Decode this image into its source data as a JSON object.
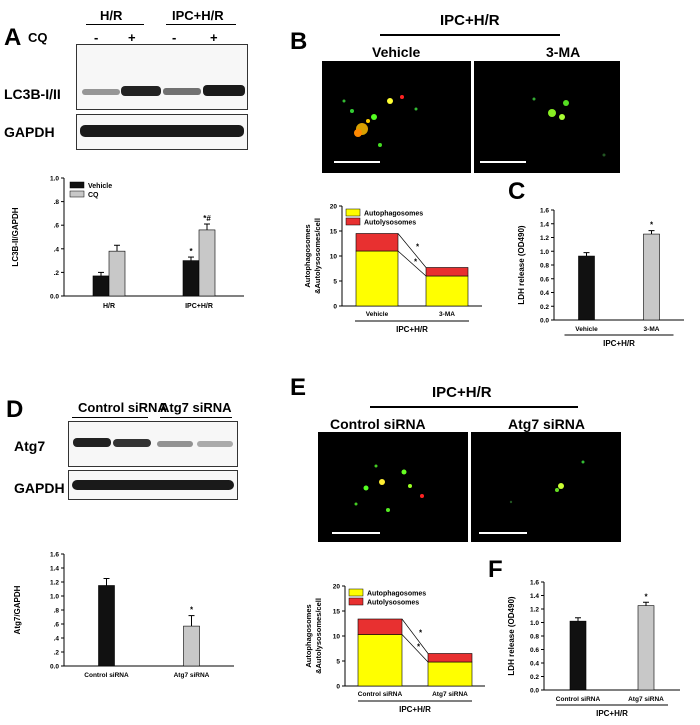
{
  "panels": {
    "A": {
      "label": "A",
      "groups": [
        "H/R",
        "IPC+H/R"
      ],
      "cq_row_label": "CQ",
      "signs": [
        "-",
        "+",
        "-",
        "+"
      ],
      "blot_labels": [
        "LC3B-I/II",
        "GAPDH"
      ]
    },
    "B": {
      "label": "B",
      "header": "IPC+H/R",
      "image_labels": [
        "Vehicle",
        "3-MA"
      ]
    },
    "C": {
      "label": "C"
    },
    "D": {
      "label": "D",
      "groups": [
        "Control siRNA",
        "Atg7 siRNA"
      ],
      "blot_labels": [
        "Atg7",
        "GAPDH"
      ]
    },
    "E": {
      "label": "E",
      "header": "IPC+H/R",
      "image_labels": [
        "Control siRNA",
        "Atg7 siRNA"
      ]
    },
    "F": {
      "label": "F"
    }
  },
  "chart_data": [
    {
      "id": "A-bar",
      "type": "bar",
      "categories": [
        "H/R",
        "IPC+H/R"
      ],
      "series": [
        {
          "name": "Vehicle",
          "values": [
            0.17,
            0.3
          ],
          "errors": [
            0.03,
            0.03
          ],
          "color": "#111111"
        },
        {
          "name": "CQ",
          "values": [
            0.38,
            0.56
          ],
          "errors": [
            0.05,
            0.05
          ],
          "color": "#c8c8c8"
        }
      ],
      "annotations": [
        [
          "",
          ""
        ],
        [
          "*",
          "*#"
        ]
      ],
      "ylabel": "LC3B-II/GAPDH",
      "ylim": [
        0,
        1.0
      ],
      "yticks": [
        "0.0",
        ".2",
        ".4",
        ".6",
        ".8",
        "1.0"
      ],
      "legend": "top-left"
    },
    {
      "id": "B-stack",
      "type": "bar",
      "stacked": true,
      "categories": [
        "Vehicle",
        "3-MA"
      ],
      "series": [
        {
          "name": "Autophagosomes",
          "values": [
            11,
            6
          ],
          "color": "#ffff00"
        },
        {
          "name": "Autolysosomes",
          "values": [
            3.5,
            1.7
          ],
          "color": "#e83030"
        }
      ],
      "ylabel": "Autophagosomes &Autolysosomes/cell",
      "xlabel": "IPC+H/R",
      "ylim": [
        0,
        20
      ],
      "yticks": [
        "0",
        "5",
        "10",
        "15",
        "20"
      ],
      "annotations": [
        "*",
        "*"
      ],
      "legend": "top-left"
    },
    {
      "id": "C-bar",
      "type": "bar",
      "categories": [
        "Vehicle",
        "3-MA"
      ],
      "series": [
        {
          "name": "",
          "values": [
            0.93,
            1.25
          ],
          "errors": [
            0.05,
            0.05
          ],
          "colors": [
            "#111111",
            "#c8c8c8"
          ]
        }
      ],
      "annotations": [
        "",
        "*"
      ],
      "ylabel": "LDH release (OD490)",
      "xlabel": "IPC+H/R",
      "ylim": [
        0,
        1.6
      ],
      "yticks": [
        "0.0",
        "0.2",
        "0.4",
        "0.6",
        "0.8",
        "1.0",
        "1.2",
        "1.4",
        "1.6"
      ]
    },
    {
      "id": "D-bar",
      "type": "bar",
      "categories": [
        "Control siRNA",
        "Atg7 siRNA"
      ],
      "series": [
        {
          "name": "",
          "values": [
            1.15,
            0.57
          ],
          "errors": [
            0.1,
            0.15
          ],
          "colors": [
            "#111111",
            "#c8c8c8"
          ]
        }
      ],
      "annotations": [
        "",
        "*"
      ],
      "ylabel": "Atg7/GAPDH",
      "ylim": [
        0,
        1.6
      ],
      "yticks": [
        "0.0",
        ".2",
        ".4",
        ".6",
        ".8",
        "1.0",
        "1.2",
        "1.4",
        "1.6"
      ]
    },
    {
      "id": "E-stack",
      "type": "bar",
      "stacked": true,
      "categories": [
        "Control siRNA",
        "Atg7 siRNA"
      ],
      "series": [
        {
          "name": "Autophagosomes",
          "values": [
            10.3,
            4.8
          ],
          "color": "#ffff00"
        },
        {
          "name": "Autolysosomes",
          "values": [
            3.1,
            1.7
          ],
          "color": "#e83030"
        }
      ],
      "ylabel": "Autophagosomes &Autolysosomes/cell",
      "xlabel": "IPC+H/R",
      "ylim": [
        0,
        20
      ],
      "yticks": [
        "0",
        "5",
        "10",
        "15",
        "20"
      ],
      "annotations": [
        "*",
        "*"
      ],
      "legend": "top-left"
    },
    {
      "id": "F-bar",
      "type": "bar",
      "categories": [
        "Control siRNA",
        "Atg7 siRNA"
      ],
      "series": [
        {
          "name": "",
          "values": [
            1.02,
            1.25
          ],
          "errors": [
            0.05,
            0.05
          ],
          "colors": [
            "#111111",
            "#c8c8c8"
          ]
        }
      ],
      "annotations": [
        "",
        "*"
      ],
      "ylabel": "LDH release (OD490)",
      "xlabel": "IPC+H/R",
      "ylim": [
        0,
        1.6
      ],
      "yticks": [
        "0.0",
        "0.2",
        "0.4",
        "0.6",
        "0.8",
        "1.0",
        "1.2",
        "1.4",
        "1.6"
      ]
    }
  ]
}
